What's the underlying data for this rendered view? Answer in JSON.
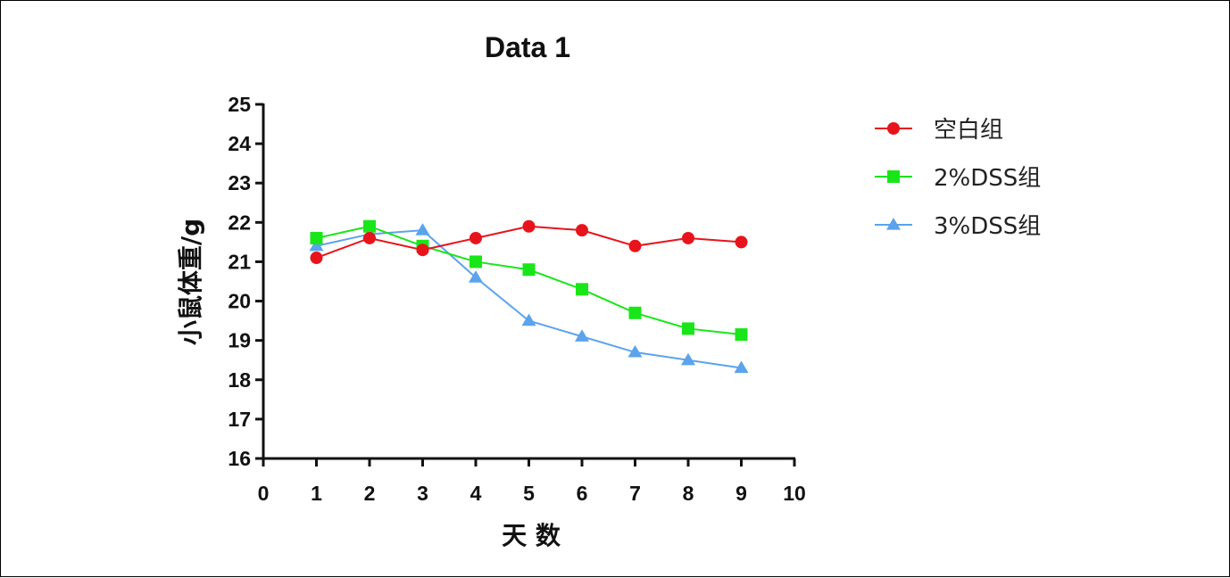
{
  "chart_data": {
    "type": "line",
    "title": "Data 1",
    "xlabel": "天 数",
    "ylabel": "小鼠体重/g",
    "xlim": [
      0,
      10
    ],
    "ylim": [
      16,
      25
    ],
    "x_ticks": [
      "0",
      "1",
      "2",
      "3",
      "4",
      "5",
      "6",
      "7",
      "8",
      "9",
      "10"
    ],
    "y_ticks": [
      "16",
      "17",
      "18",
      "19",
      "20",
      "21",
      "22",
      "23",
      "24",
      "25"
    ],
    "grid": false,
    "legend_position": "right",
    "series": [
      {
        "name": "空白组",
        "marker": "circle",
        "color": "#e8141b",
        "x": [
          1,
          2,
          3,
          4,
          5,
          6,
          7,
          8,
          9
        ],
        "y": [
          21.1,
          21.6,
          21.3,
          21.6,
          21.9,
          21.8,
          21.4,
          21.6,
          21.5
        ]
      },
      {
        "name": "2%DSS组",
        "marker": "square",
        "color": "#19e619",
        "x": [
          1,
          2,
          3,
          4,
          5,
          6,
          7,
          8,
          9
        ],
        "y": [
          21.6,
          21.9,
          21.4,
          21.0,
          20.8,
          20.3,
          19.7,
          19.3,
          19.15
        ]
      },
      {
        "name": "3%DSS组",
        "marker": "triangle",
        "color": "#5ba3ec",
        "x": [
          1,
          2,
          3,
          4,
          5,
          6,
          7,
          8,
          9
        ],
        "y": [
          21.4,
          21.7,
          21.8,
          20.6,
          19.5,
          19.1,
          18.7,
          18.5,
          18.3
        ]
      }
    ]
  }
}
